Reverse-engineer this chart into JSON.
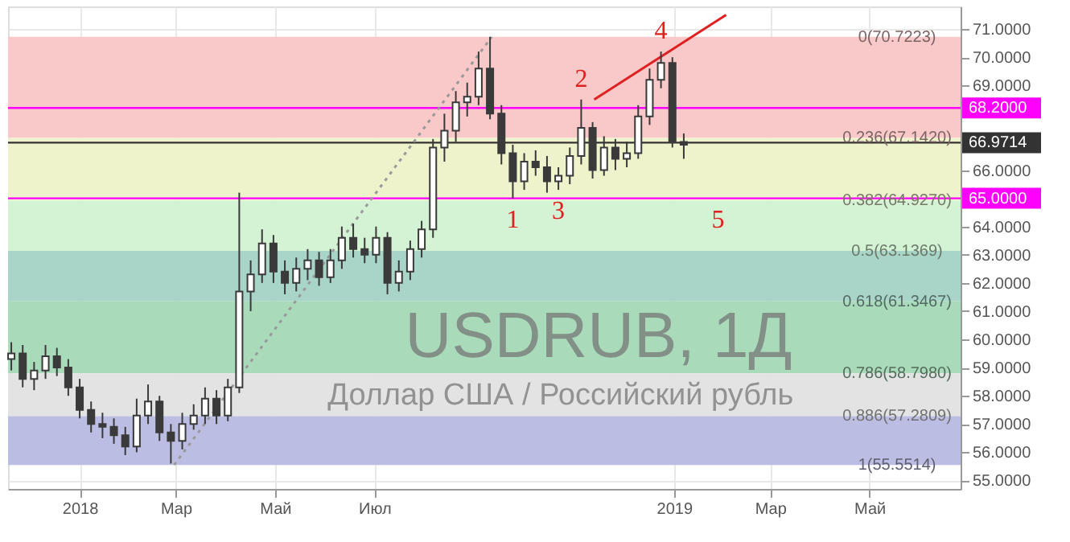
{
  "chart_data": {
    "type": "candlestick",
    "title": "USDRUB, 1Д",
    "subtitle": "Доллар США / Российский рубль",
    "color": "#3a3a3a",
    "x": [
      "2017-11-20",
      "2017-11-27",
      "2017-12-04",
      "2017-12-11",
      "2017-12-18",
      "2017-12-25",
      "2018-01-01",
      "2018-01-08",
      "2018-01-15",
      "2018-01-22",
      "2018-01-29",
      "2018-02-05",
      "2018-02-12",
      "2018-02-19",
      "2018-02-26",
      "2018-03-05",
      "2018-03-12",
      "2018-03-19",
      "2018-03-26",
      "2018-04-02",
      "2018-04-09",
      "2018-04-16",
      "2018-04-23",
      "2018-04-30",
      "2018-05-07",
      "2018-05-14",
      "2018-05-21",
      "2018-05-28",
      "2018-06-04",
      "2018-06-11",
      "2018-06-18",
      "2018-06-25",
      "2018-07-02",
      "2018-07-09",
      "2018-07-16",
      "2018-07-23",
      "2018-07-30",
      "2018-08-06",
      "2018-08-13",
      "2018-08-20",
      "2018-08-27",
      "2018-09-03",
      "2018-09-10",
      "2018-09-17",
      "2018-09-24",
      "2018-10-01",
      "2018-10-08",
      "2018-10-15",
      "2018-10-22",
      "2018-10-29",
      "2018-11-05",
      "2018-11-12",
      "2018-11-19",
      "2018-11-26",
      "2018-12-03",
      "2018-12-10",
      "2018-12-17",
      "2018-12-24",
      "2018-12-31",
      "2019-01-07"
    ],
    "ohlc": [
      [
        59.3,
        59.9,
        58.9,
        59.5
      ],
      [
        59.5,
        59.8,
        58.3,
        58.6
      ],
      [
        58.6,
        59.2,
        58.2,
        58.9
      ],
      [
        58.9,
        59.8,
        58.6,
        59.4
      ],
      [
        59.4,
        59.7,
        58.7,
        59.0
      ],
      [
        59.0,
        59.3,
        58.0,
        58.3
      ],
      [
        58.3,
        58.6,
        57.2,
        57.5
      ],
      [
        57.5,
        57.8,
        56.7,
        57.0
      ],
      [
        57.0,
        57.4,
        56.5,
        56.9
      ],
      [
        56.9,
        57.2,
        56.3,
        56.6
      ],
      [
        56.6,
        56.9,
        55.9,
        56.2
      ],
      [
        56.2,
        57.9,
        56.0,
        57.3
      ],
      [
        57.3,
        58.4,
        57.0,
        57.8
      ],
      [
        57.8,
        58.0,
        56.4,
        56.7
      ],
      [
        56.7,
        57.0,
        55.6,
        56.4
      ],
      [
        56.4,
        57.4,
        56.1,
        57.0
      ],
      [
        57.0,
        57.7,
        56.8,
        57.3
      ],
      [
        57.3,
        58.3,
        57.0,
        57.9
      ],
      [
        57.9,
        58.2,
        57.0,
        57.3
      ],
      [
        57.3,
        58.6,
        57.1,
        58.3
      ],
      [
        58.3,
        65.2,
        58.1,
        61.7
      ],
      [
        61.7,
        62.8,
        61.0,
        62.3
      ],
      [
        62.3,
        63.9,
        62.0,
        63.4
      ],
      [
        63.4,
        63.7,
        62.0,
        62.4
      ],
      [
        62.4,
        62.8,
        61.6,
        62.0
      ],
      [
        62.0,
        62.9,
        61.7,
        62.5
      ],
      [
        62.5,
        63.2,
        62.1,
        62.8
      ],
      [
        62.8,
        63.1,
        61.9,
        62.2
      ],
      [
        62.2,
        63.2,
        62.0,
        62.8
      ],
      [
        62.8,
        64.0,
        62.5,
        63.6
      ],
      [
        63.6,
        64.1,
        62.9,
        63.2
      ],
      [
        63.2,
        63.6,
        62.7,
        63.0
      ],
      [
        63.0,
        64.0,
        62.7,
        63.6
      ],
      [
        63.6,
        63.8,
        61.6,
        62.0
      ],
      [
        62.0,
        62.8,
        61.7,
        62.4
      ],
      [
        62.4,
        63.5,
        62.1,
        63.2
      ],
      [
        63.2,
        64.2,
        62.9,
        63.9
      ],
      [
        63.9,
        67.1,
        63.6,
        66.8
      ],
      [
        66.8,
        68.0,
        66.3,
        67.4
      ],
      [
        67.4,
        68.8,
        67.0,
        68.4
      ],
      [
        68.4,
        69.1,
        67.9,
        68.6
      ],
      [
        68.6,
        70.2,
        68.3,
        69.6
      ],
      [
        69.6,
        70.72,
        67.8,
        68.0
      ],
      [
        68.0,
        68.3,
        66.2,
        66.6
      ],
      [
        66.6,
        66.9,
        65.0,
        65.6
      ],
      [
        65.6,
        66.6,
        65.3,
        66.3
      ],
      [
        66.3,
        66.7,
        65.8,
        66.1
      ],
      [
        66.1,
        66.5,
        65.2,
        65.6
      ],
      [
        65.6,
        66.1,
        65.3,
        65.8
      ],
      [
        65.8,
        66.8,
        65.5,
        66.5
      ],
      [
        66.5,
        68.5,
        66.2,
        67.5
      ],
      [
        67.5,
        67.7,
        65.7,
        66.0
      ],
      [
        66.0,
        67.2,
        65.8,
        66.8
      ],
      [
        66.8,
        67.1,
        66.0,
        66.4
      ],
      [
        66.4,
        67.0,
        66.1,
        66.6
      ],
      [
        66.6,
        68.3,
        66.4,
        67.9
      ],
      [
        67.9,
        69.6,
        67.6,
        69.2
      ],
      [
        69.2,
        70.2,
        68.9,
        69.8
      ],
      [
        69.8,
        70.0,
        66.8,
        67.0
      ],
      [
        67.0,
        67.3,
        66.4,
        66.9
      ]
    ],
    "series": [
      {
        "type": "line",
        "x": [
          "2018-11-13",
          "2019-02-02"
        ],
        "values": [
          68.5,
          71.5
        ],
        "color": "#e02020"
      },
      {
        "type": "line",
        "x": [
          "2018-02-28",
          "2018-09-11"
        ],
        "values": [
          55.55,
          70.72
        ],
        "color": "#999999",
        "line_style": "dotted"
      }
    ],
    "bands": [
      {
        "axis": "y",
        "from": 67.142,
        "to": 70.7223,
        "color": "#f9c8c8"
      },
      {
        "axis": "y",
        "from": 64.927,
        "to": 67.142,
        "color": "#eef3cc"
      },
      {
        "axis": "y",
        "from": 63.1369,
        "to": 64.927,
        "color": "#d4f2d4"
      },
      {
        "axis": "y",
        "from": 61.3467,
        "to": 63.1369,
        "color": "#a8d5c8"
      },
      {
        "axis": "y",
        "from": 58.798,
        "to": 61.3467,
        "color": "#a9dbbb"
      },
      {
        "axis": "y",
        "from": 57.2809,
        "to": 58.798,
        "color": "#e3e3e3"
      },
      {
        "axis": "y",
        "from": 55.5514,
        "to": 57.2809,
        "color": "#bbbde3"
      }
    ],
    "ref_lines": [
      {
        "axis": "y",
        "value": 68.2,
        "label": "68.2000",
        "color": "#ff00ff"
      },
      {
        "axis": "y",
        "value": 66.9714,
        "label": "66.9714",
        "color": "#333333"
      },
      {
        "axis": "y",
        "value": 65.0,
        "label": "65.0000",
        "color": "#ff00ff"
      }
    ],
    "annotations": [
      {
        "text": "0(70.7223)",
        "x": "2019-05-18",
        "y": 70.7223
      },
      {
        "text": "0.236(67.1420)",
        "x": "2019-05-18",
        "y": 67.142
      },
      {
        "text": "0.382(64.9270)",
        "x": "2019-05-18",
        "y": 64.927
      },
      {
        "text": "0.5(63.1369)",
        "x": "2019-05-18",
        "y": 63.1369
      },
      {
        "text": "0.618(61.3467)",
        "x": "2019-05-18",
        "y": 61.3467
      },
      {
        "text": "0.786(58.7980)",
        "x": "2019-05-18",
        "y": 58.798
      },
      {
        "text": "0.886(57.2809)",
        "x": "2019-05-18",
        "y": 57.2809
      },
      {
        "text": "1(55.5514)",
        "x": "2019-05-18",
        "y": 55.5514
      },
      {
        "text": "1",
        "x": "2018-09-24",
        "y": 65.0
      },
      {
        "text": "2",
        "x": "2018-11-05",
        "y": 68.5
      },
      {
        "text": "3",
        "x": "2018-10-22",
        "y": 65.3
      },
      {
        "text": "4",
        "x": "2018-12-24",
        "y": 70.2
      },
      {
        "text": "5",
        "x": "2019-01-28",
        "y": 65.0
      }
    ],
    "xlim": [
      "2017-11-18",
      "2019-06-26"
    ],
    "xticks": [
      {
        "value": "2018-01-01",
        "label": "2018"
      },
      {
        "value": "2018-03-01",
        "label": "Мар"
      },
      {
        "value": "2018-05-01",
        "label": "Май"
      },
      {
        "value": "2018-07-01",
        "label": "Июл"
      },
      {
        "value": "2019-01-01",
        "label": "2019"
      },
      {
        "value": "2019-03-01",
        "label": "Мар"
      },
      {
        "value": "2019-05-01",
        "label": "Май"
      }
    ],
    "ylim": [
      54.7,
      71.8
    ],
    "yticks": [
      {
        "value": 55,
        "label": "55.0000"
      },
      {
        "value": 56,
        "label": "56.0000"
      },
      {
        "value": 57,
        "label": "57.0000"
      },
      {
        "value": 58,
        "label": "58.0000"
      },
      {
        "value": 59,
        "label": "59.0000"
      },
      {
        "value": 60,
        "label": "60.0000"
      },
      {
        "value": 61,
        "label": "61.0000"
      },
      {
        "value": 62,
        "label": "62.0000"
      },
      {
        "value": 63,
        "label": "63.0000"
      },
      {
        "value": 64,
        "label": "64.0000"
      },
      {
        "value": 66,
        "label": "66.0000"
      },
      {
        "value": 69,
        "label": "69.0000"
      },
      {
        "value": 70,
        "label": "70.0000"
      },
      {
        "value": 71,
        "label": "71.0000"
      }
    ],
    "grid": true
  }
}
